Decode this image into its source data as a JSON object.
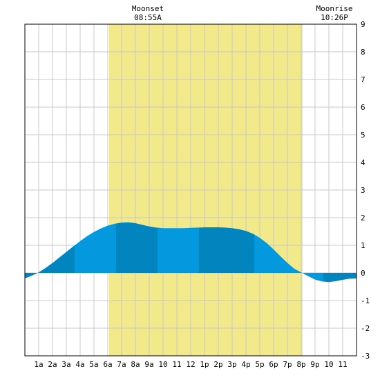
{
  "chart_data": {
    "type": "area",
    "title": "",
    "xlabel": "",
    "ylabel": "",
    "x_range_hours": [
      0,
      24
    ],
    "ylim": [
      -3,
      9
    ],
    "y_ticks": [
      -3,
      -2,
      -1,
      0,
      1,
      2,
      3,
      4,
      5,
      6,
      7,
      8,
      9
    ],
    "x_ticks": [
      {
        "hour": 1,
        "label": "1a"
      },
      {
        "hour": 2,
        "label": "2a"
      },
      {
        "hour": 3,
        "label": "3a"
      },
      {
        "hour": 4,
        "label": "4a"
      },
      {
        "hour": 5,
        "label": "5a"
      },
      {
        "hour": 6,
        "label": "6a"
      },
      {
        "hour": 7,
        "label": "7a"
      },
      {
        "hour": 8,
        "label": "8a"
      },
      {
        "hour": 9,
        "label": "9a"
      },
      {
        "hour": 10,
        "label": "10"
      },
      {
        "hour": 11,
        "label": "11"
      },
      {
        "hour": 12,
        "label": "12"
      },
      {
        "hour": 13,
        "label": "1p"
      },
      {
        "hour": 14,
        "label": "2p"
      },
      {
        "hour": 15,
        "label": "3p"
      },
      {
        "hour": 16,
        "label": "4p"
      },
      {
        "hour": 17,
        "label": "5p"
      },
      {
        "hour": 18,
        "label": "6p"
      },
      {
        "hour": 19,
        "label": "7p"
      },
      {
        "hour": 20,
        "label": "8p"
      },
      {
        "hour": 21,
        "label": "9p"
      },
      {
        "hour": 22,
        "label": "10"
      },
      {
        "hour": 23,
        "label": "11"
      }
    ],
    "daylight": {
      "start_hour": 6.1,
      "end_hour": 20.1
    },
    "series": [
      {
        "x": [
          0,
          0.5,
          1,
          1.5,
          2,
          2.5,
          3,
          3.5,
          4,
          4.5,
          5,
          5.5,
          6,
          6.5,
          7,
          7.5,
          8,
          8.5,
          9,
          9.5,
          10,
          10.5,
          11,
          11.5,
          12,
          12.5,
          13,
          13.5,
          14,
          14.5,
          15,
          15.5,
          16,
          16.5,
          17,
          17.5,
          18,
          18.5,
          19,
          19.5,
          20,
          20.5,
          21,
          21.5,
          22,
          22.5,
          23,
          23.5,
          24
        ],
        "values": [
          -0.2,
          -0.1,
          0.02,
          0.18,
          0.36,
          0.56,
          0.76,
          0.96,
          1.15,
          1.33,
          1.48,
          1.61,
          1.71,
          1.78,
          1.82,
          1.83,
          1.8,
          1.74,
          1.68,
          1.64,
          1.62,
          1.62,
          1.62,
          1.62,
          1.63,
          1.64,
          1.65,
          1.65,
          1.65,
          1.64,
          1.62,
          1.58,
          1.52,
          1.42,
          1.27,
          1.08,
          0.85,
          0.6,
          0.36,
          0.15,
          0.02,
          -0.12,
          -0.24,
          -0.31,
          -0.33,
          -0.3,
          -0.25,
          -0.21,
          -0.2
        ]
      }
    ],
    "alternating_bands": [
      0,
      3.6,
      6.6,
      9.6,
      12.6,
      16.6,
      21.6,
      24
    ],
    "colors": {
      "daylight": "#f2e98a",
      "tide_dark": "#0284bf",
      "tide_light": "#0499de",
      "grid": "#c8c8c8",
      "axis": "#000000"
    },
    "annotations": [
      {
        "hour": 8.9,
        "label": "Moonset",
        "time": "08:55A"
      },
      {
        "hour": 22.4,
        "label": "Moonrise",
        "time": "10:26P"
      }
    ]
  }
}
